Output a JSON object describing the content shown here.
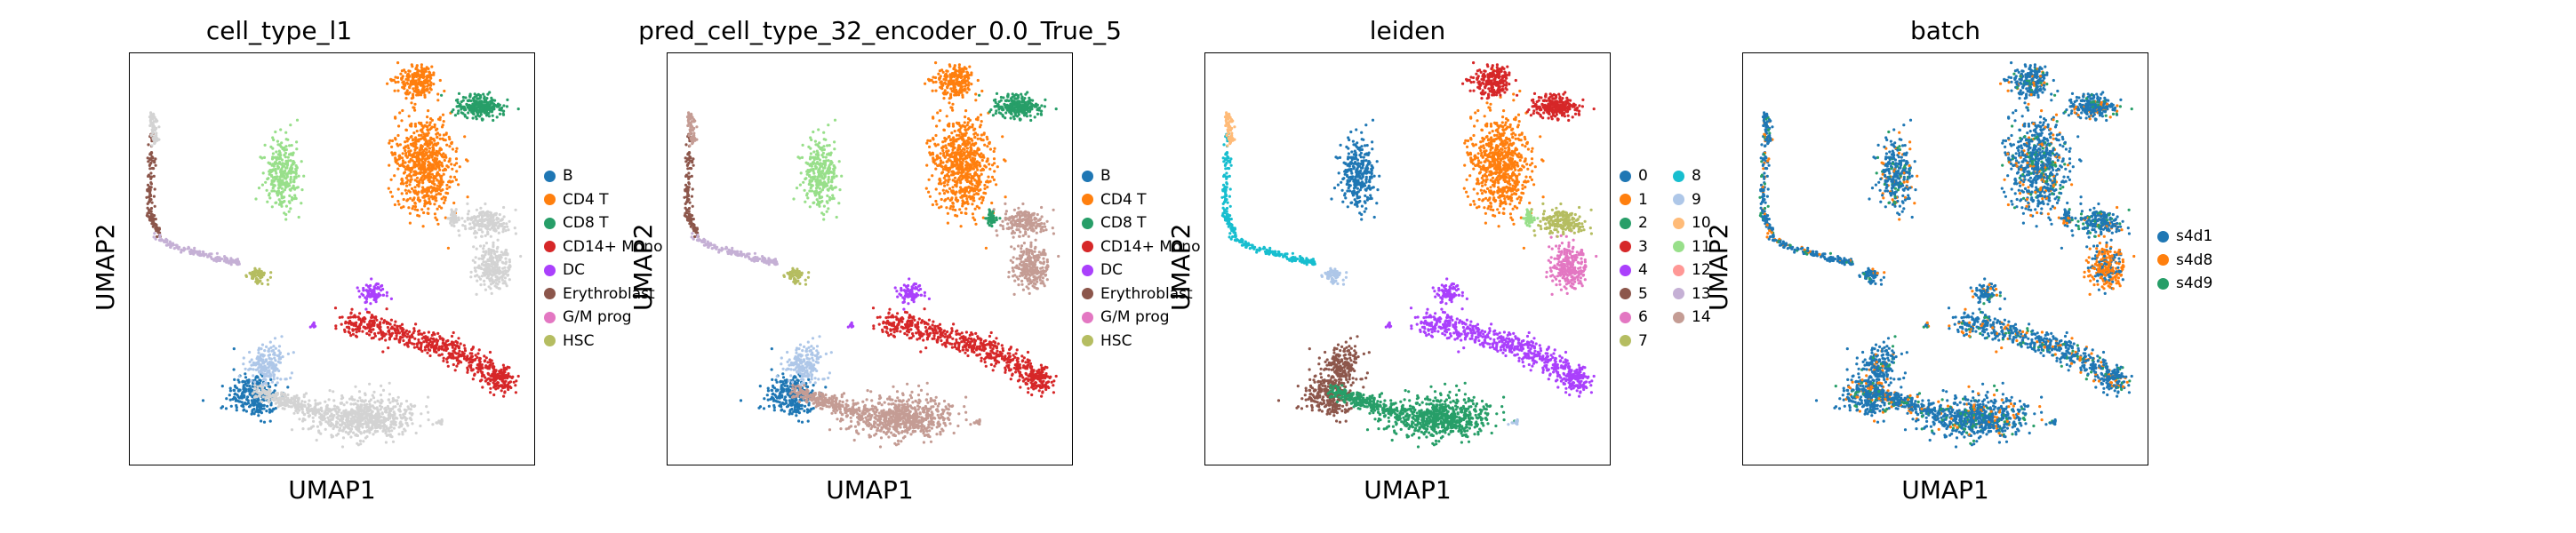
{
  "axis_labels": {
    "x": "UMAP1",
    "y": "UMAP2"
  },
  "legends": {
    "cell_type": [
      "B",
      "CD4 T",
      "CD8 T",
      "CD14+ Mono",
      "DC",
      "Erythroblast",
      "G/M prog",
      "HSC"
    ],
    "leiden": [
      "0",
      "1",
      "2",
      "3",
      "4",
      "5",
      "6",
      "7",
      "8",
      "9",
      "10",
      "11",
      "12",
      "13",
      "14"
    ],
    "batch": [
      "s4d1",
      "s4d8",
      "s4d9"
    ]
  },
  "colors": {
    "tab20": [
      "#1f77b4",
      "#ff7f0e",
      "#279e68",
      "#d62728",
      "#aa40fc",
      "#8c564b",
      "#e377c2",
      "#b5bd61",
      "#17becf",
      "#aec7e8",
      "#ffbb78",
      "#98df8a",
      "#ff9896",
      "#c5b0d5",
      "#c49c94"
    ],
    "na": "#d3d3d3"
  },
  "chart_data": [
    {
      "type": "scatter",
      "title": "cell_type_l1",
      "xlabel": "UMAP1",
      "ylabel": "UMAP2",
      "legend": [
        "B",
        "CD4 T",
        "CD8 T",
        "CD14+ Mono",
        "DC",
        "Erythroblast",
        "G/M prog",
        "HSC"
      ],
      "legend_placement": "right"
    },
    {
      "type": "scatter",
      "title": "pred_cell_type_32_encoder_0.0_True_5",
      "xlabel": "UMAP1",
      "ylabel": "UMAP2",
      "legend": [
        "B",
        "CD4 T",
        "CD8 T",
        "CD14+ Mono",
        "DC",
        "Erythroblast",
        "G/M prog",
        "HSC"
      ],
      "legend_placement": "right"
    },
    {
      "type": "scatter",
      "title": "leiden",
      "xlabel": "UMAP1",
      "ylabel": "UMAP2",
      "legend": [
        "0",
        "1",
        "2",
        "3",
        "4",
        "5",
        "6",
        "7",
        "8",
        "9",
        "10",
        "11",
        "12",
        "13",
        "14"
      ],
      "legend_placement": "right"
    },
    {
      "type": "scatter",
      "title": "batch",
      "xlabel": "UMAP1",
      "ylabel": "UMAP2",
      "legend": [
        "s4d1",
        "s4d8",
        "s4d9"
      ],
      "legend_placement": "right"
    }
  ]
}
